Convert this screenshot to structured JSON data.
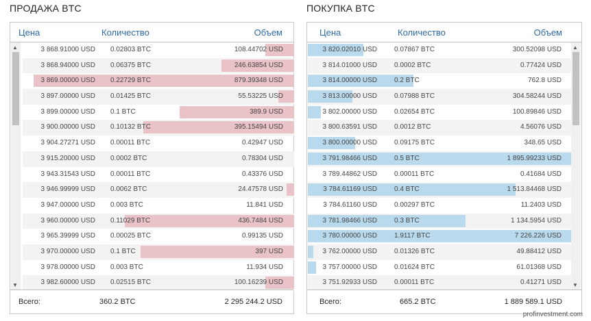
{
  "sell": {
    "title": "ПРОДАЖА BTC",
    "columns": {
      "price": "Цена",
      "qty": "Количество",
      "volume": "Объем"
    },
    "rows": [
      {
        "price": "3 868.91000 USD",
        "qty": "0.02803 BTC",
        "volume": "108.44702 USD",
        "depth": 0.11
      },
      {
        "price": "3 868.94000 USD",
        "qty": "0.06375 BTC",
        "volume": "246.63854 USD",
        "depth": 0.28
      },
      {
        "price": "3 869.00000 USD",
        "qty": "0.22729 BTC",
        "volume": "879.39348 USD",
        "depth": 1.0
      },
      {
        "price": "3 897.00000 USD",
        "qty": "0.01425 BTC",
        "volume": "55.53225 USD",
        "depth": 0.06
      },
      {
        "price": "3 899.00000 USD",
        "qty": "0.1 BTC",
        "volume": "389.9 USD",
        "depth": 0.44
      },
      {
        "price": "3 900.00000 USD",
        "qty": "0.10132 BTC",
        "volume": "395.15494 USD",
        "depth": 0.58
      },
      {
        "price": "3 904.27271 USD",
        "qty": "0.00011 BTC",
        "volume": "0.42947 USD",
        "depth": 0
      },
      {
        "price": "3 915.20000 USD",
        "qty": "0.0002 BTC",
        "volume": "0.78304 USD",
        "depth": 0
      },
      {
        "price": "3 943.31543 USD",
        "qty": "0.00011 BTC",
        "volume": "0.43376 USD",
        "depth": 0
      },
      {
        "price": "3 946.99999 USD",
        "qty": "0.0062 BTC",
        "volume": "24.47578 USD",
        "depth": 0.03
      },
      {
        "price": "3 947.00000 USD",
        "qty": "0.003 BTC",
        "volume": "11.841 USD",
        "depth": 0
      },
      {
        "price": "3 960.00000 USD",
        "qty": "0.11029 BTC",
        "volume": "436.7484 USD",
        "depth": 0.65
      },
      {
        "price": "3 965.39999 USD",
        "qty": "0.00025 BTC",
        "volume": "0.99135 USD",
        "depth": 0
      },
      {
        "price": "3 970.00000 USD",
        "qty": "0.1 BTC",
        "volume": "397 USD",
        "depth": 0.59
      },
      {
        "price": "3 978.00000 USD",
        "qty": "0.003 BTC",
        "volume": "11.934 USD",
        "depth": 0
      },
      {
        "price": "3 982.60000 USD",
        "qty": "0.02515 BTC",
        "volume": "100.16239 USD",
        "depth": 0.11
      }
    ],
    "total_label": "Всего:",
    "total_qty": "360.2 BTC",
    "total_volume": "2 295 244.2 USD",
    "accent": "#e9c3c7"
  },
  "buy": {
    "title": "ПОКУПКА BTC",
    "columns": {
      "price": "Цена",
      "qty": "Количество",
      "volume": "Объем"
    },
    "rows": [
      {
        "price": "3 820.02010 USD",
        "qty": "0.07867 BTC",
        "volume": "300.52098 USD",
        "depth": 0.21
      },
      {
        "price": "3 814.01000 USD",
        "qty": "0.0002 BTC",
        "volume": "0.77424 USD",
        "depth": 0
      },
      {
        "price": "3 814.00000 USD",
        "qty": "0.2 BTC",
        "volume": "762.8 USD",
        "depth": 0.4
      },
      {
        "price": "3 813.00000 USD",
        "qty": "0.07988 BTC",
        "volume": "304.58244 USD",
        "depth": 0.17
      },
      {
        "price": "3 802.00000 USD",
        "qty": "0.02654 BTC",
        "volume": "100.89846 USD",
        "depth": 0.05
      },
      {
        "price": "3 800.63591 USD",
        "qty": "0.0012 BTC",
        "volume": "4.56076 USD",
        "depth": 0
      },
      {
        "price": "3 800.00000 USD",
        "qty": "0.09175 BTC",
        "volume": "348.65 USD",
        "depth": 0.18
      },
      {
        "price": "3 791.98466 USD",
        "qty": "0.5 BTC",
        "volume": "1 895.99233 USD",
        "depth": 1.0
      },
      {
        "price": "3 789.44862 USD",
        "qty": "0.00011 BTC",
        "volume": "0.41684 USD",
        "depth": 0
      },
      {
        "price": "3 784.61169 USD",
        "qty": "0.4 BTC",
        "volume": "1 513.84468 USD",
        "depth": 0.79
      },
      {
        "price": "3 784.61160 USD",
        "qty": "0.00297 BTC",
        "volume": "11.2403 USD",
        "depth": 0
      },
      {
        "price": "3 781.98466 USD",
        "qty": "0.3 BTC",
        "volume": "1 134.5954 USD",
        "depth": 0.6
      },
      {
        "price": "3 780.00000 USD",
        "qty": "1.9117 BTC",
        "volume": "7 226.226 USD",
        "depth": 1.0
      },
      {
        "price": "3 762.00000 USD",
        "qty": "0.01326 BTC",
        "volume": "49.88412 USD",
        "depth": 0.02
      },
      {
        "price": "3 757.00000 USD",
        "qty": "0.01624 BTC",
        "volume": "61.01368 USD",
        "depth": 0.03
      },
      {
        "price": "3 751.92933 USD",
        "qty": "0.00011 BTC",
        "volume": "0.41271 USD",
        "depth": 0
      }
    ],
    "total_label": "Всего:",
    "total_qty": "665.2 BTC",
    "total_volume": "1 889 589.1 USD",
    "accent": "#b9d9ec"
  },
  "watermark": "profinvestment.com"
}
